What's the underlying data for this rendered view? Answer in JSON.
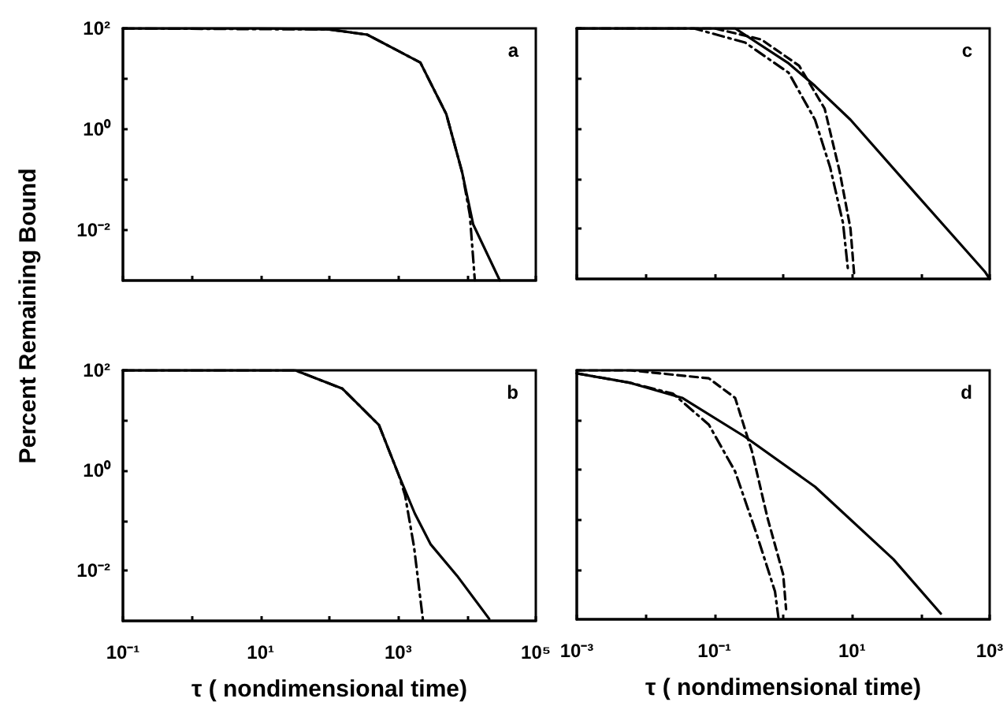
{
  "chart_data": [
    {
      "type": "line",
      "title": "a",
      "ylabel": "Percent Remaining Bound",
      "log": "xy",
      "tick_labels": "y",
      "xlim": [
        0.1,
        100000
      ],
      "ylim": [
        0.001,
        100
      ],
      "xticks": [
        0.1,
        1,
        10,
        100,
        1000,
        10000,
        100000
      ],
      "yticks": [
        {
          "value": 100,
          "label": "10²"
        },
        {
          "value": 10,
          "label": null
        },
        {
          "value": 1,
          "label": "10⁰"
        },
        {
          "value": 0.1,
          "label": null
        },
        {
          "value": 0.01,
          "label": "10⁻²"
        }
      ],
      "series": [
        {
          "color": "#000000",
          "line_style": "solid",
          "x": [
            0.1,
            10,
            100,
            355,
            2100,
            5000,
            8500,
            12300,
            30000
          ],
          "values": [
            100,
            100,
            95,
            75,
            21,
            2,
            0.14,
            0.013,
            0.001
          ]
        },
        {
          "color": "#000000",
          "line_style": "dotted",
          "x": [
            0.1,
            100,
            355,
            2100,
            5000,
            8500,
            11000,
            13000
          ],
          "values": [
            100,
            95,
            75,
            21,
            2,
            0.14,
            0.02,
            0.001
          ]
        }
      ]
    },
    {
      "type": "line",
      "title": "b",
      "xlabel": "τ ( nondimensional time)",
      "log": "xy",
      "xlim": [
        0.1,
        100000
      ],
      "ylim": [
        0.001,
        100
      ],
      "xticks": [
        {
          "value": 0.1,
          "label": "10⁻¹"
        },
        {
          "value": 1,
          "label": null
        },
        {
          "value": 10,
          "label": "10¹"
        },
        {
          "value": 100,
          "label": null
        },
        {
          "value": 1000,
          "label": "10³"
        },
        {
          "value": 10000,
          "label": null
        },
        {
          "value": 100000,
          "label": "10⁵"
        }
      ],
      "yticks": [
        {
          "value": 100,
          "label": "10²"
        },
        {
          "value": 10,
          "label": null
        },
        {
          "value": 1,
          "label": "10⁰"
        },
        {
          "value": 0.1,
          "label": null
        },
        {
          "value": 0.01,
          "label": "10⁻²"
        }
      ],
      "series": [
        {
          "color": "#000000",
          "line_style": "solid",
          "x": [
            0.1,
            32,
            155,
            525,
            1020,
            1740,
            2950,
            7200,
            21000
          ],
          "values": [
            100,
            100,
            43,
            8.1,
            0.81,
            0.14,
            0.034,
            0.0079,
            0.0011
          ]
        },
        {
          "color": "#000000",
          "line_style": "dotted",
          "x": [
            0.1,
            32,
            155,
            525,
            1020,
            1260,
            1700,
            2300
          ],
          "values": [
            100,
            100,
            43,
            8.1,
            0.81,
            0.32,
            0.03,
            0.001
          ]
        }
      ]
    },
    {
      "type": "line",
      "title": "c",
      "log": "xy",
      "tick_labels": false,
      "xlim": [
        0.001,
        1000
      ],
      "ylim": [
        0.001,
        100
      ],
      "xticks": [
        0.001,
        0.01,
        0.1,
        1,
        10,
        100,
        1000
      ],
      "yticks": [
        100,
        10,
        1,
        0.1,
        0.01
      ],
      "series": [
        {
          "color": "#000000",
          "line_style": "solid",
          "x": [
            0.001,
            0.2,
            1.2,
            2.9,
            9.5,
            93,
            850,
            1000
          ],
          "values": [
            100,
            100,
            20,
            7.1,
            1.5,
            0.043,
            0.0014,
            0.001
          ]
        },
        {
          "color": "#000000",
          "line_style": "dashed",
          "x": [
            0.001,
            0.1,
            0.48,
            1.7,
            4,
            6.6,
            9.5,
            10.7
          ],
          "values": [
            100,
            100,
            60,
            18,
            2.5,
            0.14,
            0.01,
            0.0013
          ]
        },
        {
          "color": "#000000",
          "line_style": "dotted",
          "x": [
            0.001,
            0.05,
            0.28,
            1.2,
            2.9,
            4.8,
            7.4,
            8.7
          ],
          "values": [
            100,
            100,
            52,
            13,
            1.5,
            0.17,
            0.013,
            0.0016
          ]
        }
      ]
    },
    {
      "type": "line",
      "title": "d",
      "xlabel": "τ ( nondimensional time)",
      "log": "xy",
      "tick_labels": "x",
      "xlim": [
        0.001,
        1000
      ],
      "ylim": [
        0.001,
        100
      ],
      "xticks": [
        {
          "value": 0.001,
          "label": "10⁻³"
        },
        {
          "value": 0.01,
          "label": null
        },
        {
          "value": 0.1,
          "label": "10⁻¹"
        },
        {
          "value": 1,
          "label": null
        },
        {
          "value": 10,
          "label": "10¹"
        },
        {
          "value": 100,
          "label": null
        },
        {
          "value": 1000,
          "label": "10³"
        }
      ],
      "yticks": [
        100,
        10,
        1,
        0.1,
        0.01
      ],
      "series": [
        {
          "color": "#000000",
          "line_style": "solid",
          "x": [
            0.001,
            0.006,
            0.034,
            0.28,
            2.9,
            40,
            195
          ],
          "values": [
            87,
            56,
            28,
            4.6,
            0.46,
            0.016,
            0.0013
          ]
        },
        {
          "color": "#000000",
          "line_style": "dashed",
          "x": [
            0.001,
            0.006,
            0.083,
            0.2,
            0.35,
            0.59,
            1,
            1.1
          ],
          "values": [
            100,
            100,
            69,
            28,
            2.4,
            0.11,
            0.0079,
            0.0016
          ]
        },
        {
          "color": "#000000",
          "line_style": "dotted",
          "x": [
            0.001,
            0.006,
            0.025,
            0.083,
            0.2,
            0.41,
            0.76,
            0.85
          ],
          "values": [
            87,
            56,
            34,
            8.1,
            0.93,
            0.052,
            0.0036,
            0.0011
          ]
        }
      ]
    }
  ]
}
